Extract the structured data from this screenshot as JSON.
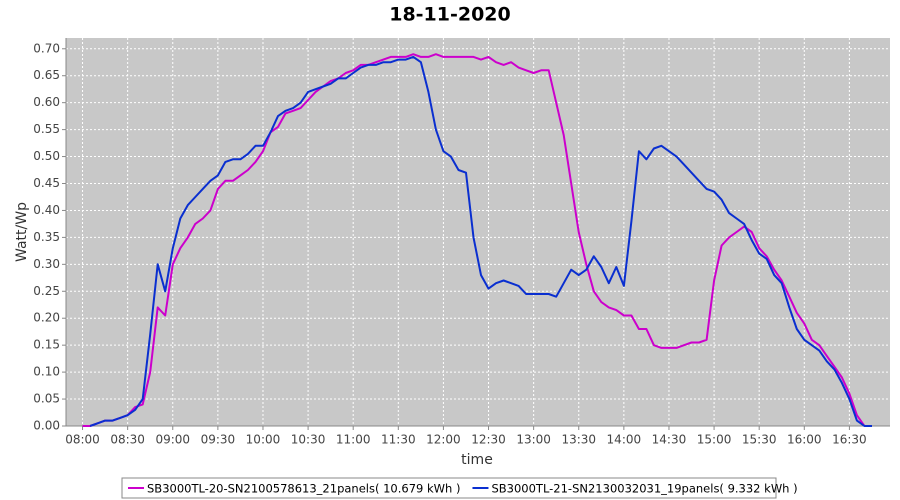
{
  "chart_data": {
    "type": "line",
    "title": "18-11-2020",
    "x_label": "time",
    "y_label": "Watt/Wp",
    "x": [
      "08:00",
      "08:05",
      "08:10",
      "08:15",
      "08:20",
      "08:25",
      "08:30",
      "08:35",
      "08:40",
      "08:45",
      "08:50",
      "08:55",
      "09:00",
      "09:05",
      "09:10",
      "09:15",
      "09:20",
      "09:25",
      "09:30",
      "09:35",
      "09:40",
      "09:45",
      "09:50",
      "09:55",
      "10:00",
      "10:05",
      "10:10",
      "10:15",
      "10:20",
      "10:25",
      "10:30",
      "10:35",
      "10:40",
      "10:45",
      "10:50",
      "10:55",
      "11:00",
      "11:05",
      "11:10",
      "11:15",
      "11:20",
      "11:25",
      "11:30",
      "11:35",
      "11:40",
      "11:45",
      "11:50",
      "11:55",
      "12:00",
      "12:05",
      "12:10",
      "12:15",
      "12:20",
      "12:25",
      "12:30",
      "12:35",
      "12:40",
      "12:45",
      "12:50",
      "12:55",
      "13:00",
      "13:05",
      "13:10",
      "13:15",
      "13:20",
      "13:25",
      "13:30",
      "13:35",
      "13:40",
      "13:45",
      "13:50",
      "13:55",
      "14:00",
      "14:05",
      "14:10",
      "14:15",
      "14:20",
      "14:25",
      "14:30",
      "14:35",
      "14:40",
      "14:45",
      "14:50",
      "14:55",
      "15:00",
      "15:05",
      "15:10",
      "15:15",
      "15:20",
      "15:25",
      "15:30",
      "15:35",
      "15:40",
      "15:45",
      "15:50",
      "15:55",
      "16:00",
      "16:05",
      "16:10",
      "16:15",
      "16:20",
      "16:25",
      "16:30",
      "16:35",
      "16:40",
      "16:45"
    ],
    "series": [
      {
        "name": "SB3000TL-20-SN2100578613_21panels( 10.679 kWh )",
        "color": "#cc00cc",
        "values": [
          0,
          0,
          0.005,
          0.01,
          0.01,
          0.015,
          0.02,
          0.035,
          0.04,
          0.1,
          0.22,
          0.205,
          0.3,
          0.33,
          0.35,
          0.375,
          0.385,
          0.4,
          0.44,
          0.455,
          0.455,
          0.465,
          0.475,
          0.49,
          0.51,
          0.545,
          0.555,
          0.58,
          0.585,
          0.59,
          0.605,
          0.62,
          0.63,
          0.64,
          0.645,
          0.655,
          0.66,
          0.67,
          0.67,
          0.675,
          0.68,
          0.685,
          0.685,
          0.685,
          0.69,
          0.685,
          0.685,
          0.69,
          0.685,
          0.685,
          0.685,
          0.685,
          0.685,
          0.68,
          0.685,
          0.675,
          0.67,
          0.675,
          0.665,
          0.66,
          0.655,
          0.66,
          0.66,
          0.6,
          0.54,
          0.45,
          0.36,
          0.3,
          0.25,
          0.23,
          0.22,
          0.215,
          0.205,
          0.205,
          0.18,
          0.18,
          0.15,
          0.145,
          0.145,
          0.145,
          0.15,
          0.155,
          0.155,
          0.16,
          0.27,
          0.335,
          0.35,
          0.36,
          0.37,
          0.36,
          0.33,
          0.315,
          0.29,
          0.27,
          0.24,
          0.21,
          0.19,
          0.16,
          0.15,
          0.13,
          0.11,
          0.09,
          0.06,
          0.02,
          0,
          null
        ]
      },
      {
        "name": "SB3000TL-21-SN2130032031_19panels( 9.332 kWh )",
        "color": "#0a2fd0",
        "values": [
          null,
          0,
          0.005,
          0.01,
          0.01,
          0.015,
          0.02,
          0.03,
          0.05,
          0.17,
          0.3,
          0.25,
          0.33,
          0.385,
          0.41,
          0.425,
          0.44,
          0.455,
          0.465,
          0.49,
          0.495,
          0.495,
          0.505,
          0.52,
          0.52,
          0.545,
          0.575,
          0.585,
          0.59,
          0.6,
          0.62,
          0.625,
          0.63,
          0.635,
          0.645,
          0.645,
          0.655,
          0.665,
          0.67,
          0.67,
          0.675,
          0.675,
          0.68,
          0.68,
          0.685,
          0.675,
          0.62,
          0.55,
          0.51,
          0.5,
          0.475,
          0.47,
          0.35,
          0.28,
          0.255,
          0.265,
          0.27,
          0.265,
          0.26,
          0.245,
          0.245,
          0.245,
          0.245,
          0.24,
          0.265,
          0.29,
          0.28,
          0.29,
          0.315,
          0.295,
          0.265,
          0.295,
          0.26,
          0.38,
          0.51,
          0.495,
          0.515,
          0.52,
          0.51,
          0.5,
          0.485,
          0.47,
          0.455,
          0.44,
          0.435,
          0.42,
          0.395,
          0.385,
          0.375,
          0.345,
          0.32,
          0.31,
          0.28,
          0.265,
          0.22,
          0.18,
          0.16,
          0.15,
          0.14,
          0.12,
          0.105,
          0.08,
          0.05,
          0.01,
          0,
          0
        ]
      }
    ],
    "xlim": [
      "07:49",
      "16:57"
    ],
    "xticks": [
      "08:00",
      "08:30",
      "09:00",
      "09:30",
      "10:00",
      "10:30",
      "11:00",
      "11:30",
      "12:00",
      "12:30",
      "13:00",
      "13:30",
      "14:00",
      "14:30",
      "15:00",
      "15:30",
      "16:00",
      "16:30"
    ],
    "ylim": [
      0,
      0.72
    ],
    "yticks": [
      {
        "value": 0,
        "label": "0.00"
      },
      {
        "value": 0.05,
        "label": "0.05"
      },
      {
        "value": 0.1,
        "label": "0.10"
      },
      {
        "value": 0.15,
        "label": "0.15"
      },
      {
        "value": 0.2,
        "label": "0.20"
      },
      {
        "value": 0.25,
        "label": "0.25"
      },
      {
        "value": 0.3,
        "label": "0.30"
      },
      {
        "value": 0.35,
        "label": "0.35"
      },
      {
        "value": 0.4,
        "label": "0.40"
      },
      {
        "value": 0.45,
        "label": "0.45"
      },
      {
        "value": 0.5,
        "label": "0.50"
      },
      {
        "value": 0.55,
        "label": "0.55"
      },
      {
        "value": 0.6,
        "label": "0.60"
      },
      {
        "value": 0.65,
        "label": "0.65"
      },
      {
        "value": 0.7,
        "label": "0.70"
      }
    ],
    "grid": true,
    "legend": "bottom"
  }
}
